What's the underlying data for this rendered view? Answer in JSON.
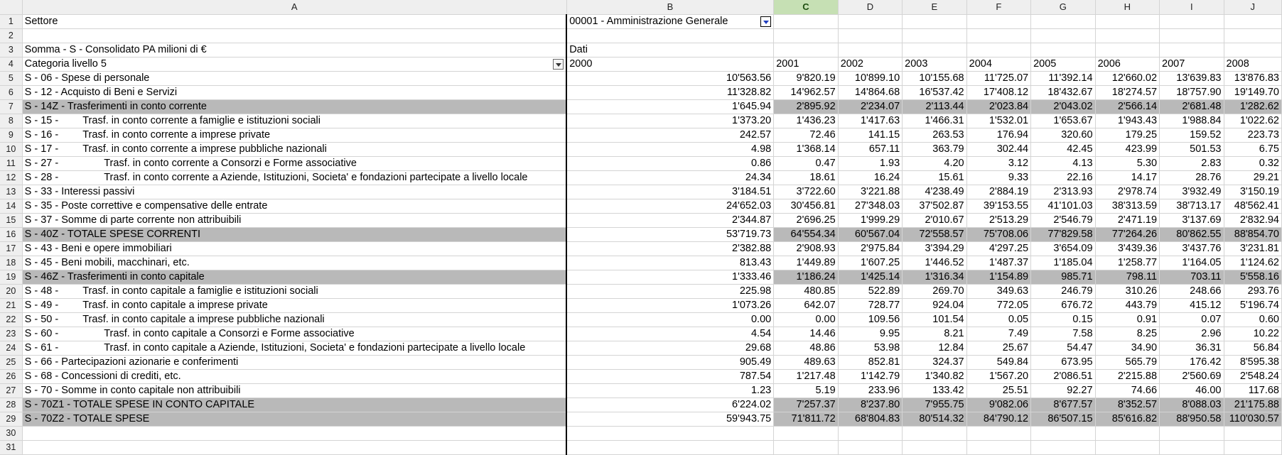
{
  "columns": [
    "A",
    "B",
    "C",
    "D",
    "E",
    "F",
    "G",
    "H",
    "I",
    "J"
  ],
  "active_column": "C",
  "filter": {
    "label": "Settore",
    "value": "00001 - Amministrazione Generale"
  },
  "pivot": {
    "title": "Somma - S - Consolidato PA milioni di €",
    "data_label": "Dati",
    "category_label": "Categoria livello 5"
  },
  "years": [
    "2000",
    "2001",
    "2002",
    "2003",
    "2004",
    "2005",
    "2006",
    "2007",
    "2008"
  ],
  "rows": [
    {
      "code": "S -  06 -",
      "label": "Spese di personale",
      "indent": 0,
      "highlight": false,
      "values": [
        "10'563.56",
        "9'820.19",
        "10'899.10",
        "10'155.68",
        "11'725.07",
        "11'392.14",
        "12'660.02",
        "13'639.83",
        "13'876.83"
      ]
    },
    {
      "code": "S -  12 -",
      "label": "Acquisto di Beni e Servizi",
      "indent": 0,
      "highlight": false,
      "values": [
        "11'328.82",
        "14'962.57",
        "14'864.68",
        "16'537.42",
        "17'408.12",
        "18'432.67",
        "18'274.57",
        "18'757.90",
        "19'149.70"
      ]
    },
    {
      "code": "S -  14Z -",
      "label": "Trasferimenti in conto corrente",
      "indent": 0,
      "highlight": true,
      "values": [
        "1'645.94",
        "2'895.92",
        "2'234.07",
        "2'113.44",
        "2'023.84",
        "2'043.02",
        "2'566.14",
        "2'681.48",
        "1'282.62"
      ]
    },
    {
      "code": "S -  15 -",
      "label": "Trasf. in conto corrente a famiglie e istituzioni sociali",
      "indent": 1,
      "highlight": false,
      "values": [
        "1'373.20",
        "1'436.23",
        "1'417.63",
        "1'466.31",
        "1'532.01",
        "1'653.67",
        "1'943.43",
        "1'988.84",
        "1'022.62"
      ]
    },
    {
      "code": "S -  16 -",
      "label": "Trasf. in conto corrente a imprese private",
      "indent": 1,
      "highlight": false,
      "values": [
        "242.57",
        "72.46",
        "141.15",
        "263.53",
        "176.94",
        "320.60",
        "179.25",
        "159.52",
        "223.73"
      ]
    },
    {
      "code": "S -  17 -",
      "label": "Trasf. in conto corrente a imprese pubbliche nazionali",
      "indent": 1,
      "highlight": false,
      "values": [
        "4.98",
        "1'368.14",
        "657.11",
        "363.79",
        "302.44",
        "42.45",
        "423.99",
        "501.53",
        "6.75"
      ]
    },
    {
      "code": "S -  27 -",
      "label": "Trasf. in conto corrente a Consorzi e Forme associative",
      "indent": 2,
      "highlight": false,
      "values": [
        "0.86",
        "0.47",
        "1.93",
        "4.20",
        "3.12",
        "4.13",
        "5.30",
        "2.83",
        "0.32"
      ]
    },
    {
      "code": "S -  28 -",
      "label": "Trasf. in conto corrente a Aziende, Istituzioni, Societa' e fondazioni partecipate a livello locale",
      "indent": 2,
      "highlight": false,
      "values": [
        "24.34",
        "18.61",
        "16.24",
        "15.61",
        "9.33",
        "22.16",
        "14.17",
        "28.76",
        "29.21"
      ]
    },
    {
      "code": "S -  33 -",
      "label": "Interessi passivi",
      "indent": 0,
      "highlight": false,
      "values": [
        "3'184.51",
        "3'722.60",
        "3'221.88",
        "4'238.49",
        "2'884.19",
        "2'313.93",
        "2'978.74",
        "3'932.49",
        "3'150.19"
      ]
    },
    {
      "code": "S -  35 -",
      "label": "Poste correttive e compensative delle entrate",
      "indent": 0,
      "highlight": false,
      "values": [
        "24'652.03",
        "30'456.81",
        "27'348.03",
        "37'502.87",
        "39'153.55",
        "41'101.03",
        "38'313.59",
        "38'713.17",
        "48'562.41"
      ]
    },
    {
      "code": "S -  37 -",
      "label": "Somme di parte corrente non attribuibili",
      "indent": 0,
      "highlight": false,
      "values": [
        "2'344.87",
        "2'696.25",
        "1'999.29",
        "2'010.67",
        "2'513.29",
        "2'546.79",
        "2'471.19",
        "3'137.69",
        "2'832.94"
      ]
    },
    {
      "code": "S -  40Z -",
      "label": "TOTALE SPESE CORRENTI",
      "indent": 0,
      "highlight": true,
      "values": [
        "53'719.73",
        "64'554.34",
        "60'567.04",
        "72'558.57",
        "75'708.06",
        "77'829.58",
        "77'264.26",
        "80'862.55",
        "88'854.70"
      ]
    },
    {
      "code": "S -  43 -",
      "label": "Beni e opere immobiliari",
      "indent": 0,
      "highlight": false,
      "values": [
        "2'382.88",
        "2'908.93",
        "2'975.84",
        "3'394.29",
        "4'297.25",
        "3'654.09",
        "3'439.36",
        "3'437.76",
        "3'231.81"
      ]
    },
    {
      "code": "S -  45 -",
      "label": "Beni mobili, macchinari, etc.",
      "indent": 0,
      "highlight": false,
      "values": [
        "813.43",
        "1'449.89",
        "1'607.25",
        "1'446.52",
        "1'487.37",
        "1'185.04",
        "1'258.77",
        "1'164.05",
        "1'124.62"
      ]
    },
    {
      "code": "S -  46Z -",
      "label": "Trasferimenti in conto capitale",
      "indent": 0,
      "highlight": true,
      "values": [
        "1'333.46",
        "1'186.24",
        "1'425.14",
        "1'316.34",
        "1'154.89",
        "985.71",
        "798.11",
        "703.11",
        "5'558.16"
      ]
    },
    {
      "code": "S -  48 -",
      "label": "Trasf. in conto capitale a famiglie e istituzioni sociali",
      "indent": 1,
      "highlight": false,
      "values": [
        "225.98",
        "480.85",
        "522.89",
        "269.70",
        "349.63",
        "246.79",
        "310.26",
        "248.66",
        "293.76"
      ]
    },
    {
      "code": "S -  49 -",
      "label": "Trasf. in conto capitale a imprese private",
      "indent": 1,
      "highlight": false,
      "values": [
        "1'073.26",
        "642.07",
        "728.77",
        "924.04",
        "772.05",
        "676.72",
        "443.79",
        "415.12",
        "5'196.74"
      ]
    },
    {
      "code": "S -  50 -",
      "label": "Trasf. in conto capitale a imprese pubbliche nazionali",
      "indent": 1,
      "highlight": false,
      "values": [
        "0.00",
        "0.00",
        "109.56",
        "101.54",
        "0.05",
        "0.15",
        "0.91",
        "0.07",
        "0.60"
      ]
    },
    {
      "code": "S -  60 -",
      "label": "Trasf. in conto capitale a Consorzi e Forme associative",
      "indent": 2,
      "highlight": false,
      "values": [
        "4.54",
        "14.46",
        "9.95",
        "8.21",
        "7.49",
        "7.58",
        "8.25",
        "2.96",
        "10.22"
      ]
    },
    {
      "code": "S -  61 -",
      "label": "Trasf. in conto capitale a Aziende, Istituzioni, Societa' e fondazioni partecipate a livello locale",
      "indent": 2,
      "highlight": false,
      "values": [
        "29.68",
        "48.86",
        "53.98",
        "12.84",
        "25.67",
        "54.47",
        "34.90",
        "36.31",
        "56.84"
      ]
    },
    {
      "code": "S -  66 -",
      "label": "Partecipazioni azionarie e conferimenti",
      "indent": 0,
      "highlight": false,
      "values": [
        "905.49",
        "489.63",
        "852.81",
        "324.37",
        "549.84",
        "673.95",
        "565.79",
        "176.42",
        "8'595.38"
      ]
    },
    {
      "code": "S -  68 -",
      "label": "Concessioni di crediti, etc.",
      "indent": 0,
      "highlight": false,
      "values": [
        "787.54",
        "1'217.48",
        "1'142.79",
        "1'340.82",
        "1'567.20",
        "2'086.51",
        "2'215.88",
        "2'560.69",
        "2'548.24"
      ]
    },
    {
      "code": "S -  70 -",
      "label": "Somme in conto capitale non attribuibili",
      "indent": 0,
      "highlight": false,
      "values": [
        "1.23",
        "5.19",
        "233.96",
        "133.42",
        "25.51",
        "92.27",
        "74.66",
        "46.00",
        "117.68"
      ]
    },
    {
      "code": "S -  70Z1 -",
      "label": "TOTALE SPESE IN CONTO CAPITALE",
      "indent": 0,
      "highlight": true,
      "values": [
        "6'224.02",
        "7'257.37",
        "8'237.80",
        "7'955.75",
        "9'082.06",
        "8'677.57",
        "8'352.57",
        "8'088.03",
        "21'175.88"
      ]
    },
    {
      "code": "S -  70Z2 -",
      "label": "TOTALE SPESE",
      "indent": 0,
      "highlight": true,
      "values": [
        "59'943.75",
        "71'811.72",
        "68'804.83",
        "80'514.32",
        "84'790.12",
        "86'507.15",
        "85'616.82",
        "88'950.58",
        "110'030.57"
      ]
    }
  ],
  "row_numbers": [
    "1",
    "2",
    "3",
    "4",
    "5",
    "6",
    "7",
    "8",
    "9",
    "10",
    "11",
    "12",
    "13",
    "14",
    "15",
    "16",
    "17",
    "18",
    "19",
    "20",
    "21",
    "22",
    "23",
    "24",
    "25",
    "26",
    "27",
    "28",
    "29",
    "30",
    "31"
  ]
}
